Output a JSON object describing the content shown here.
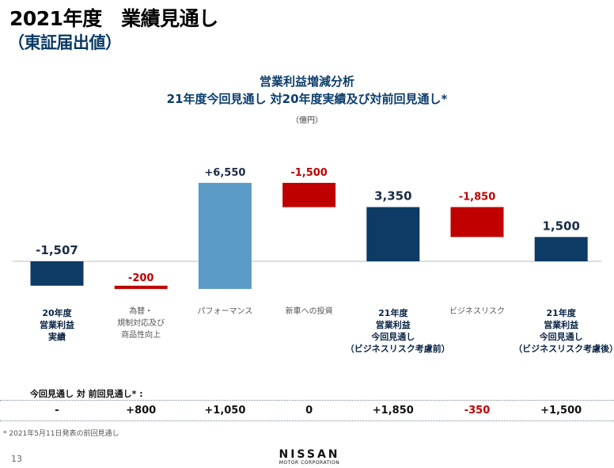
{
  "slide": {
    "title": "2021年度　業績見通し",
    "subtitle": "（東証届出値）",
    "page_number": "13",
    "footnote": "* 2021年5月11日発表の前回見通し",
    "logo": {
      "main": "NISSAN",
      "sub": "MOTOR CORPORATION"
    }
  },
  "chart_data": {
    "type": "bar",
    "subtype": "waterfall",
    "title_line1": "営業利益増減分析",
    "title_line2": "21年度今回見通し 対20年度実績及び対前回見通し*",
    "unit": "（億円）",
    "grid": false,
    "bars": [
      {
        "label_lines": [
          "20年度",
          "営業利益",
          "実績"
        ],
        "label_style": "bold",
        "value": -1507,
        "value_label": "-1,507",
        "kind": "total",
        "color": "#0d3b66"
      },
      {
        "label_lines": [
          "為替・",
          "規制対応及び",
          "商品性向上"
        ],
        "label_style": "light",
        "value": -200,
        "value_label": "-200",
        "kind": "delta",
        "color": "#c00000"
      },
      {
        "label_lines": [
          "パフォーマンス"
        ],
        "label_style": "light",
        "value": 6550,
        "value_label": "+6,550",
        "kind": "delta",
        "color": "#5b9bc7"
      },
      {
        "label_lines": [
          "新車への投資"
        ],
        "label_style": "light",
        "value": -1500,
        "value_label": "-1,500",
        "kind": "delta",
        "color": "#c00000"
      },
      {
        "label_lines": [
          "21年度",
          "営業利益",
          "今回見通し",
          "（ビジネスリスク考慮前）"
        ],
        "label_style": "bold",
        "value": 3350,
        "value_label": "3,350",
        "kind": "total",
        "color": "#0d3b66"
      },
      {
        "label_lines": [
          "ビジネスリスク"
        ],
        "label_style": "light",
        "value": -1850,
        "value_label": "-1,850",
        "kind": "delta",
        "color": "#c00000"
      },
      {
        "label_lines": [
          "21年度",
          "営業利益",
          "今回見通し",
          "（ビジネスリスク考慮後）"
        ],
        "label_style": "bold",
        "value": 1500,
        "value_label": "1,500",
        "kind": "total",
        "color": "#0d3b66"
      }
    ],
    "colors": {
      "total": "#0d3b66",
      "negative": "#c00000",
      "positive": "#5b9bc7",
      "negative_text": "#c00000",
      "value_text": "#1a2d45"
    }
  },
  "summary": {
    "title": "今回見通し 対 前回見通し* :",
    "values": [
      {
        "text": "-",
        "color": "#111111"
      },
      {
        "text": "+800",
        "color": "#111111"
      },
      {
        "text": "+1,050",
        "color": "#111111"
      },
      {
        "text": "0",
        "color": "#111111"
      },
      {
        "text": "+1,850",
        "color": "#111111"
      },
      {
        "text": "-350",
        "color": "#c00000"
      },
      {
        "text": "+1,500",
        "color": "#111111"
      }
    ]
  }
}
